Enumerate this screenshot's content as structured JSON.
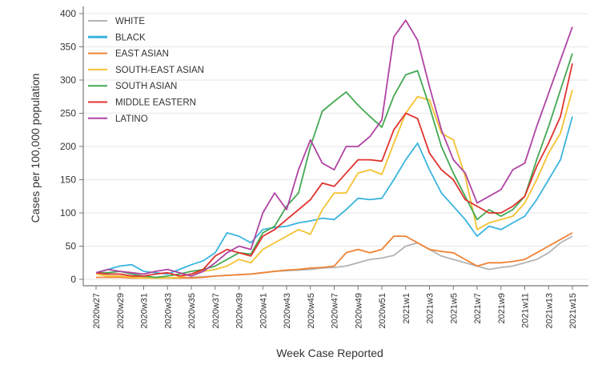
{
  "chart_data": {
    "type": "line",
    "xlabel": "Week Case Reported",
    "ylabel": "Cases per 100,000 population",
    "ylim": [
      0,
      400
    ],
    "yticks": [
      0,
      50,
      100,
      150,
      200,
      250,
      300,
      350,
      400
    ],
    "grid": "horizontal",
    "legend": "top-left",
    "x": [
      "2020w27",
      "2020w28",
      "2020w29",
      "2020w30",
      "2020w31",
      "2020w32",
      "2020w33",
      "2020w34",
      "2020w35",
      "2020w36",
      "2020w37",
      "2020w38",
      "2020w39",
      "2020w40",
      "2020w41",
      "2020w42",
      "2020w43",
      "2020w44",
      "2020w45",
      "2020w46",
      "2020w47",
      "2020w48",
      "2020w49",
      "2020w50",
      "2020w51",
      "2020w52",
      "2021w1",
      "2021w2",
      "2021w3",
      "2021w4",
      "2021w5",
      "2021w6",
      "2021w7",
      "2021w8",
      "2021w9",
      "2021w10",
      "2021w11",
      "2021w12",
      "2021w13",
      "2021w14",
      "2021w15"
    ],
    "xticklabels": [
      "2020w27",
      "2020w29",
      "2020w31",
      "2020w33",
      "2020w35",
      "2020w37",
      "2020w39",
      "2020w41",
      "2020w43",
      "2020w45",
      "2020w47",
      "2020w49",
      "2020w51",
      "2021w1",
      "2021w3",
      "2021w5",
      "2021w7",
      "2021w9",
      "2021w11",
      "2021w13",
      "2021w15"
    ],
    "series": [
      {
        "name": "WHITE",
        "color": "#b3b3b3",
        "values": [
          8,
          8,
          8,
          5,
          3,
          2,
          2,
          2,
          3,
          4,
          5,
          6,
          7,
          8,
          10,
          12,
          13,
          14,
          15,
          17,
          18,
          20,
          25,
          30,
          32,
          36,
          50,
          55,
          45,
          35,
          30,
          25,
          20,
          15,
          18,
          20,
          25,
          30,
          40,
          55,
          65
        ]
      },
      {
        "name": "BLACK",
        "color": "#3ab4de",
        "values": [
          10,
          15,
          20,
          22,
          12,
          10,
          8,
          15,
          22,
          28,
          40,
          70,
          65,
          55,
          75,
          78,
          80,
          85,
          88,
          92,
          90,
          105,
          122,
          120,
          122,
          150,
          180,
          205,
          165,
          130,
          110,
          90,
          65,
          80,
          75,
          85,
          95,
          120,
          150,
          180,
          245
        ]
      },
      {
        "name": "EAST ASIAN",
        "color": "#f08233",
        "values": [
          3,
          3,
          3,
          2,
          2,
          2,
          2,
          2,
          2,
          3,
          5,
          6,
          7,
          8,
          10,
          12,
          14,
          15,
          17,
          18,
          20,
          40,
          45,
          40,
          45,
          65,
          65,
          55,
          45,
          42,
          40,
          30,
          20,
          25,
          25,
          27,
          30,
          40,
          50,
          60,
          70
        ]
      },
      {
        "name": "SOUTH-EAST ASIAN",
        "color": "#f4c232",
        "values": [
          8,
          5,
          5,
          3,
          2,
          2,
          2,
          3,
          8,
          12,
          15,
          20,
          30,
          25,
          45,
          55,
          65,
          75,
          68,
          105,
          130,
          130,
          160,
          165,
          158,
          205,
          250,
          275,
          270,
          220,
          210,
          155,
          75,
          85,
          90,
          95,
          115,
          150,
          190,
          220,
          285
        ]
      },
      {
        "name": "SOUTH ASIAN",
        "color": "#43a852",
        "values": [
          10,
          10,
          12,
          8,
          5,
          3,
          5,
          8,
          12,
          15,
          20,
          30,
          40,
          38,
          70,
          80,
          110,
          130,
          200,
          253,
          268,
          282,
          262,
          245,
          229,
          276,
          308,
          314,
          260,
          200,
          160,
          125,
          90,
          105,
          95,
          105,
          125,
          180,
          230,
          285,
          340
        ]
      },
      {
        "name": "MIDDLE EASTERN",
        "color": "#e0332f",
        "values": [
          10,
          8,
          8,
          5,
          5,
          8,
          10,
          5,
          8,
          15,
          35,
          45,
          40,
          35,
          65,
          75,
          90,
          105,
          120,
          145,
          140,
          160,
          180,
          180,
          178,
          225,
          250,
          242,
          190,
          165,
          150,
          120,
          110,
          100,
          100,
          110,
          125,
          170,
          205,
          245,
          325
        ]
      },
      {
        "name": "LATINO",
        "color": "#b043a3",
        "values": [
          10,
          15,
          12,
          10,
          8,
          12,
          15,
          10,
          5,
          12,
          25,
          40,
          50,
          45,
          100,
          130,
          105,
          165,
          210,
          175,
          165,
          200,
          200,
          215,
          240,
          365,
          390,
          360,
          290,
          225,
          180,
          160,
          115,
          125,
          135,
          165,
          175,
          230,
          280,
          330,
          380
        ]
      }
    ]
  }
}
